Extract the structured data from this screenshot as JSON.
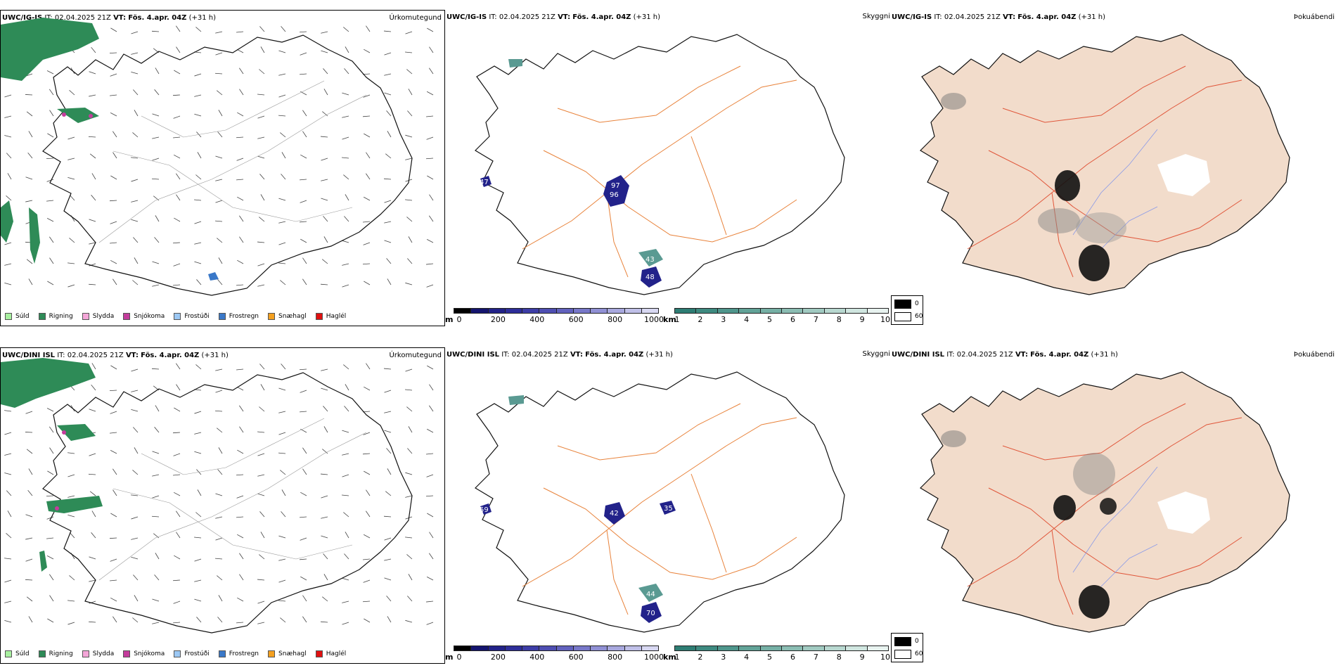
{
  "rows": [
    {
      "model": "UWC/IG-IS",
      "it_label": "IT:",
      "it_value": "02.04.2025 21Z",
      "vt_label": "VT:",
      "vt_value": "Fös. 4.apr. 04Z",
      "lead": "(+31 h)",
      "precip_labels": [],
      "vis_labels": [
        "97",
        "96",
        "47",
        "43",
        "48"
      ]
    },
    {
      "model": "UWC/DINI ISL",
      "it_label": "IT:",
      "it_value": "02.04.2025 21Z",
      "vt_label": "VT:",
      "vt_value": "Fös. 4.apr. 04Z",
      "lead": "(+31 h)",
      "vis_labels": [
        "42",
        "35",
        "59",
        "44",
        "70"
      ]
    }
  ],
  "panel_types": {
    "precip": "Úrkomutegund",
    "visibility": "Skyggni",
    "fog": "Þokuábendi"
  },
  "precip_legend": [
    {
      "label": "Súld",
      "color": "#a8f0a0"
    },
    {
      "label": "Rigning",
      "color": "#2e8b57"
    },
    {
      "label": "Slydda",
      "color": "#f4a6d8"
    },
    {
      "label": "Snjókoma",
      "color": "#c43c9c"
    },
    {
      "label": "Frostúði",
      "color": "#9cc8f4"
    },
    {
      "label": "Frostregn",
      "color": "#3a78c8"
    },
    {
      "label": "Snæhagl",
      "color": "#f4a020"
    },
    {
      "label": "Haglél",
      "color": "#e01010"
    }
  ],
  "cbar_m": {
    "unit": "m",
    "ticks": [
      "0",
      "200",
      "400",
      "600",
      "800",
      "1000"
    ],
    "colors": [
      "#000000",
      "#14146e",
      "#222288",
      "#2e2e99",
      "#3d3da6",
      "#4e4eb2",
      "#6262be",
      "#7878c9",
      "#9090d4",
      "#a8a8de",
      "#c0c0e8",
      "#d8d8f2"
    ]
  },
  "cbar_km": {
    "unit": "km",
    "ticks": [
      "1",
      "2",
      "3",
      "4",
      "5",
      "6",
      "7",
      "8",
      "9",
      "10"
    ],
    "colors": [
      "#2e7d74",
      "#3e8a80",
      "#4f968c",
      "#62a398",
      "#76b0a5",
      "#8bbdb3",
      "#a1cac1",
      "#b8d8d0",
      "#d0e6e0",
      "#e8f3f0"
    ]
  },
  "fog_legend": {
    "dark_value": "0",
    "light_value": "60"
  }
}
